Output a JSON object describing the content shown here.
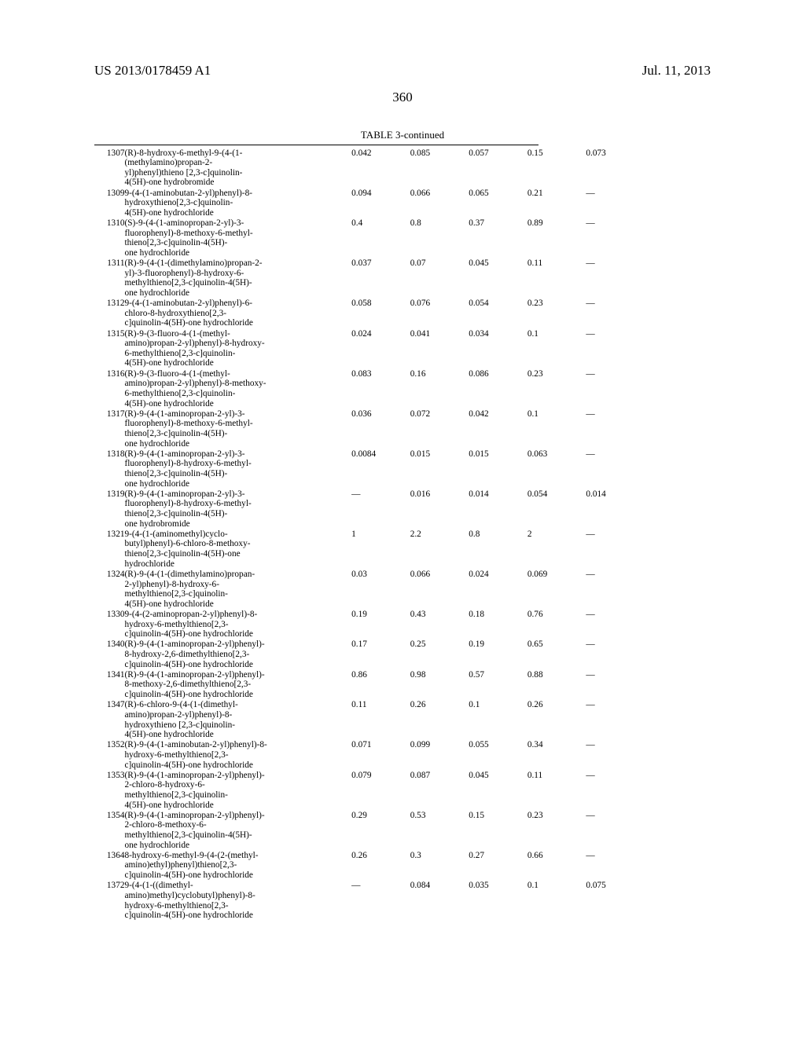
{
  "header": {
    "left": "US 2013/0178459 A1",
    "right": "Jul. 11, 2013"
  },
  "page_number": "360",
  "table_caption": "TABLE 3-continued",
  "columns": {
    "id_width": 32,
    "compound_width": 240,
    "value_width": 62
  },
  "rows": [
    {
      "id": "1307",
      "lines": [
        "(R)-8-hydroxy-6-methyl-9-(4-(1-",
        "(methylamino)propan-2-",
        "yl)phenyl)thieno [2,3-c]quinolin-",
        "4(5H)-one hydrobromide"
      ],
      "v": [
        "0.042",
        "0.085",
        "0.057",
        "0.15",
        "0.073"
      ]
    },
    {
      "id": "1309",
      "lines": [
        "9-(4-(1-aminobutan-2-yl)phenyl)-8-",
        "hydroxythieno[2,3-c]quinolin-",
        "4(5H)-one hydrochloride"
      ],
      "v": [
        "0.094",
        "0.066",
        "0.065",
        "0.21",
        "—"
      ]
    },
    {
      "id": "1310",
      "lines": [
        "(S)-9-(4-(1-aminopropan-2-yl)-3-",
        "fluorophenyl)-8-methoxy-6-methyl-",
        "thieno[2,3-c]quinolin-4(5H)-",
        "one hydrochloride"
      ],
      "v": [
        "0.4",
        "0.8",
        "0.37",
        "0.89",
        "—"
      ]
    },
    {
      "id": "1311",
      "lines": [
        "(R)-9-(4-(1-(dimethylamino)propan-2-",
        "yl)-3-fluorophenyl)-8-hydroxy-6-",
        "methylthieno[2,3-c]quinolin-4(5H)-",
        "one hydrochloride"
      ],
      "v": [
        "0.037",
        "0.07",
        "0.045",
        "0.11",
        "—"
      ]
    },
    {
      "id": "1312",
      "lines": [
        "9-(4-(1-aminobutan-2-yl)phenyl)-6-",
        "chloro-8-hydroxythieno[2,3-",
        "c]quinolin-4(5H)-one hydrochloride"
      ],
      "v": [
        "0.058",
        "0.076",
        "0.054",
        "0.23",
        "—"
      ]
    },
    {
      "id": "1315",
      "lines": [
        "(R)-9-(3-fluoro-4-(1-(methyl-",
        "amino)propan-2-yl)phenyl)-8-hydroxy-",
        "6-methylthieno[2,3-c]quinolin-",
        "4(5H)-one hydrochloride"
      ],
      "v": [
        "0.024",
        "0.041",
        "0.034",
        "0.1",
        "—"
      ]
    },
    {
      "id": "1316",
      "lines": [
        "(R)-9-(3-fluoro-4-(1-(methyl-",
        "amino)propan-2-yl)phenyl)-8-methoxy-",
        "6-methylthieno[2,3-c]quinolin-",
        "4(5H)-one hydrochloride"
      ],
      "v": [
        "0.083",
        "0.16",
        "0.086",
        "0.23",
        "—"
      ]
    },
    {
      "id": "1317",
      "lines": [
        "(R)-9-(4-(1-aminopropan-2-yl)-3-",
        "fluorophenyl)-8-methoxy-6-methyl-",
        "thieno[2,3-c]quinolin-4(5H)-",
        "one hydrochloride"
      ],
      "v": [
        "0.036",
        "0.072",
        "0.042",
        "0.1",
        "—"
      ]
    },
    {
      "id": "1318",
      "lines": [
        "(R)-9-(4-(1-aminopropan-2-yl)-3-",
        "fluorophenyl)-8-hydroxy-6-methyl-",
        "thieno[2,3-c]quinolin-4(5H)-",
        "one hydrochloride"
      ],
      "v": [
        "0.0084",
        "0.015",
        "0.015",
        "0.063",
        "—"
      ]
    },
    {
      "id": "1319",
      "lines": [
        "(R)-9-(4-(1-aminopropan-2-yl)-3-",
        "fluorophenyl)-8-hydroxy-6-methyl-",
        "thieno[2,3-c]quinolin-4(5H)-",
        "one hydrobromide"
      ],
      "v": [
        "—",
        "0.016",
        "0.014",
        "0.054",
        "0.014"
      ]
    },
    {
      "id": "1321",
      "lines": [
        "9-(4-(1-(aminomethyl)cyclo-",
        "butyl)phenyl)-6-chloro-8-methoxy-",
        "thieno[2,3-c]quinolin-4(5H)-one",
        "hydrochloride"
      ],
      "v": [
        "1",
        "2.2",
        "0.8",
        "2",
        "—"
      ]
    },
    {
      "id": "1324",
      "lines": [
        "(R)-9-(4-(1-(dimethylamino)propan-",
        "2-yl)phenyl)-8-hydroxy-6-",
        "methylthieno[2,3-c]quinolin-",
        "4(5H)-one hydrochloride"
      ],
      "v": [
        "0.03",
        "0.066",
        "0.024",
        "0.069",
        "—"
      ]
    },
    {
      "id": "1330",
      "lines": [
        "9-(4-(2-aminopropan-2-yl)phenyl)-8-",
        "hydroxy-6-methylthieno[2,3-",
        "c]quinolin-4(5H)-one hydrochloride"
      ],
      "v": [
        "0.19",
        "0.43",
        "0.18",
        "0.76",
        "—"
      ]
    },
    {
      "id": "1340",
      "lines": [
        "(R)-9-(4-(1-aminopropan-2-yl)phenyl)-",
        "8-hydroxy-2,6-dimethylthieno[2,3-",
        "c]quinolin-4(5H)-one hydrochloride"
      ],
      "v": [
        "0.17",
        "0.25",
        "0.19",
        "0.65",
        "—"
      ]
    },
    {
      "id": "1341",
      "lines": [
        "(R)-9-(4-(1-aminopropan-2-yl)phenyl)-",
        "8-methoxy-2,6-dimethylthieno[2,3-",
        "c]quinolin-4(5H)-one hydrochloride"
      ],
      "v": [
        "0.86",
        "0.98",
        "0.57",
        "0.88",
        "—"
      ]
    },
    {
      "id": "1347",
      "lines": [
        "(R)-6-chloro-9-(4-(1-(dimethyl-",
        "amino)propan-2-yl)phenyl)-8-",
        "hydroxythieno [2,3-c]quinolin-",
        "4(5H)-one hydrochloride"
      ],
      "v": [
        "0.11",
        "0.26",
        "0.1",
        "0.26",
        "—"
      ]
    },
    {
      "id": "1352",
      "lines": [
        "(R)-9-(4-(1-aminobutan-2-yl)phenyl)-8-",
        "hydroxy-6-methylthieno[2,3-",
        "c]quinolin-4(5H)-one hydrochloride"
      ],
      "v": [
        "0.071",
        "0.099",
        "0.055",
        "0.34",
        "—"
      ]
    },
    {
      "id": "1353",
      "lines": [
        "(R)-9-(4-(1-aminopropan-2-yl)phenyl)-",
        "2-chloro-8-hydroxy-6-",
        "methylthieno[2,3-c]quinolin-",
        "4(5H)-one hydrochloride"
      ],
      "v": [
        "0.079",
        "0.087",
        "0.045",
        "0.11",
        "—"
      ]
    },
    {
      "id": "1354",
      "lines": [
        "(R)-9-(4-(1-aminopropan-2-yl)phenyl)-",
        "2-chloro-8-methoxy-6-",
        "methylthieno[2,3-c]quinolin-4(5H)-",
        "one hydrochloride"
      ],
      "v": [
        "0.29",
        "0.53",
        "0.15",
        "0.23",
        "—"
      ]
    },
    {
      "id": "1364",
      "lines": [
        "8-hydroxy-6-methyl-9-(4-(2-(methyl-",
        "amino)ethyl)phenyl)thieno[2,3-",
        "c]quinolin-4(5H)-one hydrochloride"
      ],
      "v": [
        "0.26",
        "0.3",
        "0.27",
        "0.66",
        "—"
      ]
    },
    {
      "id": "1372",
      "lines": [
        "9-(4-(1-((dimethyl-",
        "amino)methyl)cyclobutyl)phenyl)-8-",
        "hydroxy-6-methylthieno[2,3-",
        "c]quinolin-4(5H)-one hydrochloride"
      ],
      "v": [
        "—",
        "0.084",
        "0.035",
        "0.1",
        "0.075"
      ]
    }
  ]
}
